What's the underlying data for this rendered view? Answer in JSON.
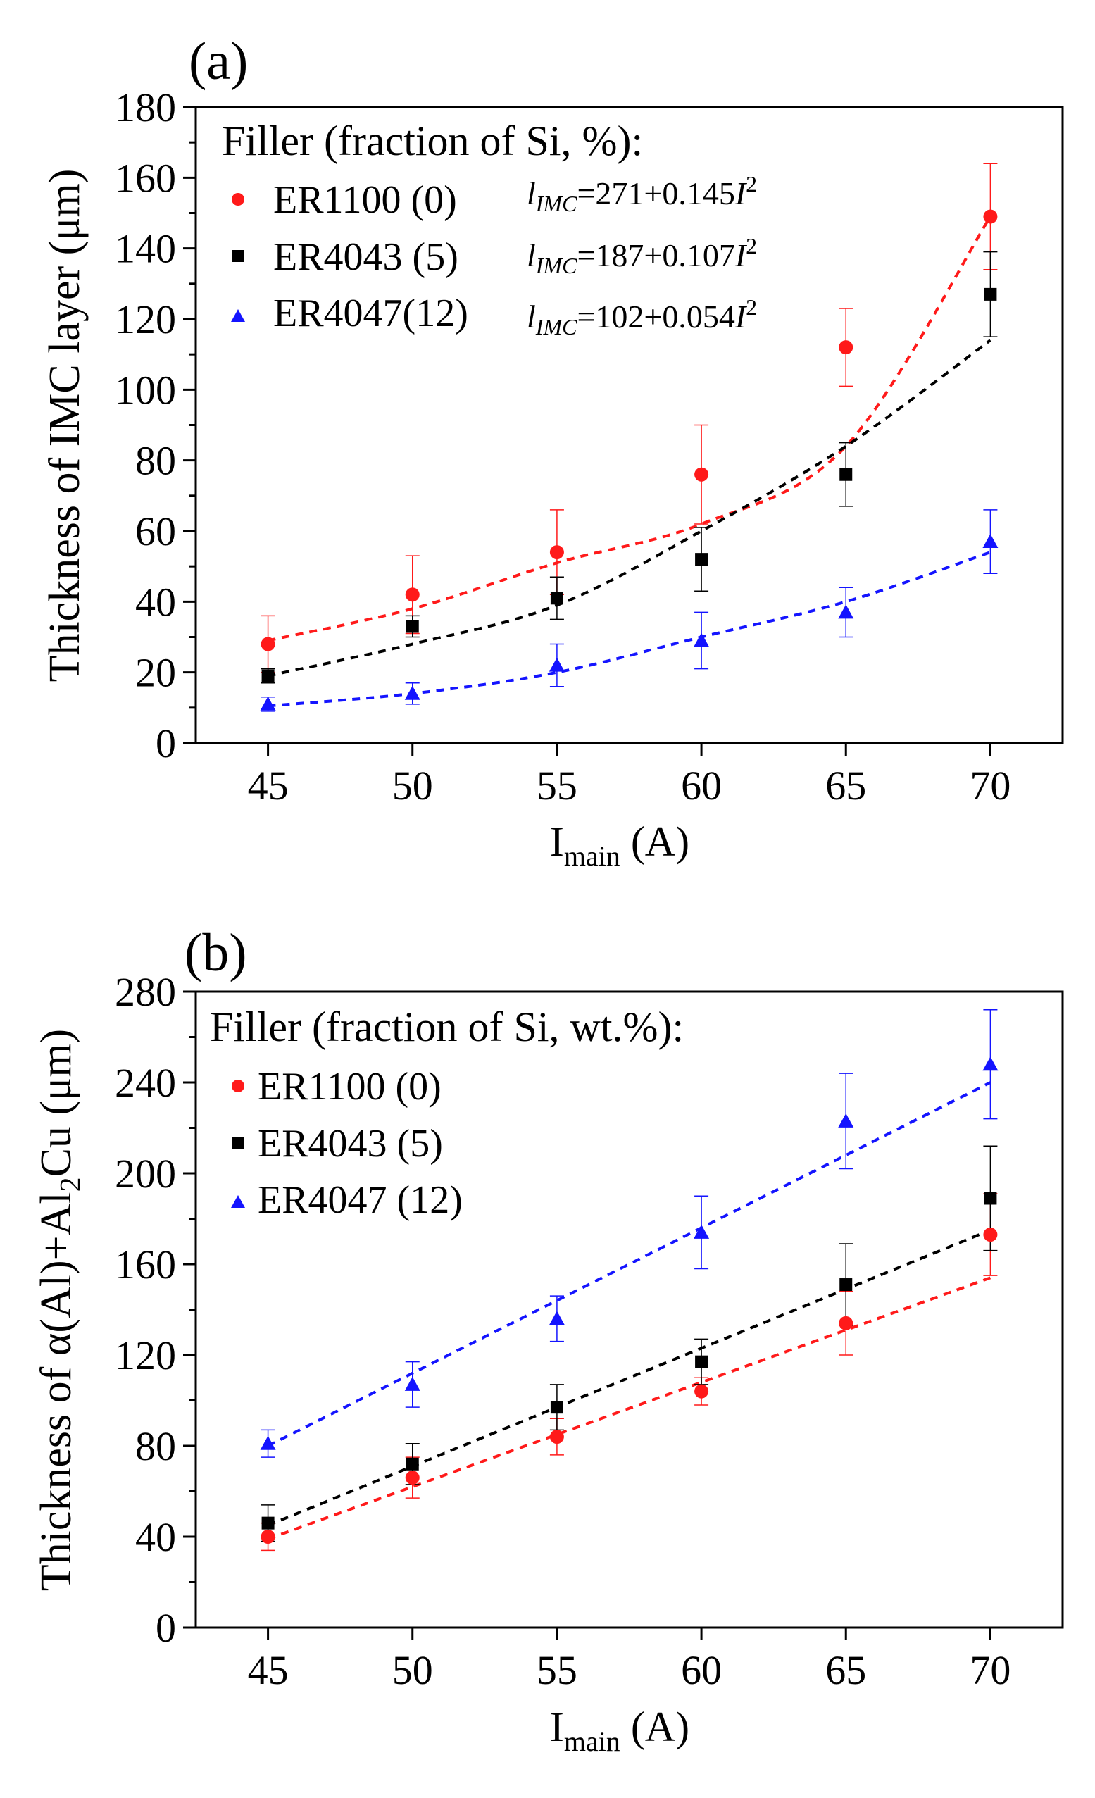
{
  "colors": {
    "red": "#ff1a1a",
    "black": "#000000",
    "blue": "#1414ff",
    "axis": "#000000"
  },
  "chart_data": [
    {
      "panel": "(a)",
      "type": "scatter",
      "title": "",
      "xlabel_main": "I",
      "xlabel_sub": "main",
      "xlabel_tail": " (A)",
      "ylabel": "Thickness of IMC layer (μm)",
      "xlim": [
        42.5,
        72.5
      ],
      "ylim": [
        0,
        180
      ],
      "xticks": [
        45,
        50,
        55,
        60,
        65,
        70
      ],
      "yticks": [
        0,
        20,
        40,
        60,
        80,
        100,
        120,
        140,
        160,
        180
      ],
      "legend_title": "Filler (fraction of Si, %):",
      "legend_position": "top-left",
      "x": [
        45,
        50,
        55,
        60,
        65,
        70
      ],
      "series": [
        {
          "name": "ER1100 (0)",
          "marker": "circle",
          "color": "red",
          "values": [
            28,
            42,
            54,
            76,
            112,
            149
          ],
          "errors": [
            8,
            11,
            12,
            14,
            11,
            15
          ],
          "fit": [
            29,
            38,
            51,
            62,
            84,
            149
          ],
          "eq": {
            "pre": "=271+0.145",
            "var": "I",
            "sup": "2"
          }
        },
        {
          "name": "ER4043 (5)",
          "marker": "square",
          "color": "black",
          "values": [
            19,
            33,
            41,
            52,
            76,
            127
          ],
          "errors": [
            2,
            3,
            6,
            9,
            9,
            12
          ],
          "fit": [
            19,
            28,
            39,
            60,
            84,
            114
          ],
          "eq": {
            "pre": "=187+0.107",
            "var": "I",
            "sup": "2"
          }
        },
        {
          "name": "ER4047(12)",
          "marker": "triangle",
          "color": "blue",
          "values": [
            11,
            14,
            22,
            29,
            37,
            57
          ],
          "errors": [
            2,
            3,
            6,
            8,
            7,
            9
          ],
          "fit": [
            10.5,
            14,
            20,
            30,
            40,
            54
          ],
          "eq": {
            "pre": "=102+0.054",
            "var": "I",
            "sup": "2"
          }
        }
      ],
      "eq_symbol": "l",
      "eq_subscript": "IMC"
    },
    {
      "panel": "(b)",
      "type": "scatter",
      "title": "",
      "xlabel_main": "I",
      "xlabel_sub": "main",
      "xlabel_tail": " (A)",
      "ylabel_pre": "Thickness of α(Al)+Al",
      "ylabel_sub": "2",
      "ylabel_post": "Cu (μm)",
      "xlim": [
        42.5,
        72.5
      ],
      "ylim": [
        0,
        280
      ],
      "xticks": [
        45,
        50,
        55,
        60,
        65,
        70
      ],
      "yticks": [
        0,
        40,
        80,
        120,
        160,
        200,
        240,
        280
      ],
      "legend_title": "Filler (fraction of Si, wt.%):",
      "legend_position": "top-left",
      "x": [
        45,
        50,
        55,
        60,
        65,
        70
      ],
      "series": [
        {
          "name": "ER1100 (0)",
          "marker": "circle",
          "color": "red",
          "values": [
            40,
            66,
            84,
            104,
            134,
            173
          ],
          "errors": [
            6,
            9,
            8,
            6,
            14,
            18
          ],
          "fit": [
            39,
            62,
            85,
            108,
            131,
            154
          ]
        },
        {
          "name": "ER4043 (5)",
          "marker": "square",
          "color": "black",
          "values": [
            46,
            72,
            97,
            117,
            151,
            189
          ],
          "errors": [
            8,
            9,
            10,
            10,
            18,
            23
          ],
          "fit": [
            45,
            71,
            97,
            123,
            149,
            175
          ]
        },
        {
          "name": "ER4047 (12)",
          "marker": "triangle",
          "color": "blue",
          "values": [
            81,
            107,
            136,
            174,
            223,
            248
          ],
          "errors": [
            6,
            10,
            10,
            16,
            21,
            24
          ],
          "fit": [
            80,
            112,
            144,
            176,
            208,
            240
          ]
        }
      ]
    }
  ]
}
